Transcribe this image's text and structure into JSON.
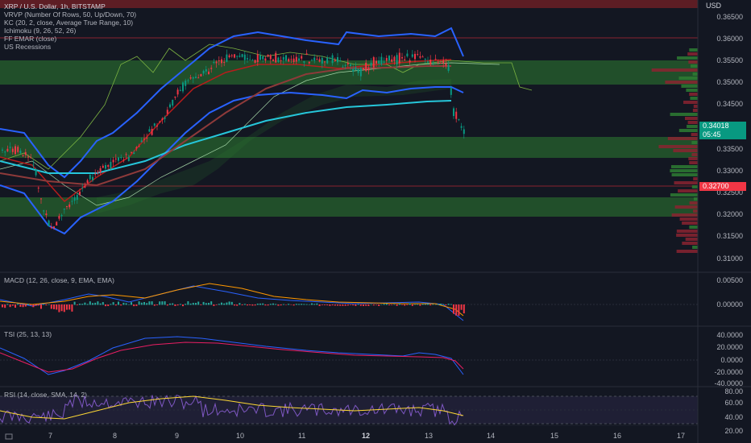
{
  "header": {
    "symbol_line": "XRP / U.S. Dollar, 1h, BITSTAMP",
    "indicators": [
      "VRVP (Number Of Rows, 50, Up/Down, 70)",
      "KC (20, 2, close, Average True Range, 10)",
      "Ichimoku (9, 26, 52, 26)",
      "FF EMAR (close)",
      "US Recessions"
    ]
  },
  "price_axis": {
    "currency": "USD",
    "ticks": [
      "0.36500",
      "0.36000",
      "0.35500",
      "0.35000",
      "0.34500",
      "0.33500",
      "0.33000",
      "0.32500",
      "0.32000",
      "0.31500",
      "0.31000"
    ],
    "current_price": "0.34018",
    "countdown": "05:45",
    "marked_price": "0.32700"
  },
  "panes": {
    "macd": {
      "title": "MACD (12, 26, close, 9, EMA, EMA)",
      "ticks": [
        "0.00500",
        "0.00000"
      ]
    },
    "tsi": {
      "title": "TSI (25, 13, 13)",
      "ticks": [
        "40.0000",
        "20.0000",
        "0.0000",
        "-20.0000",
        "-40.0000"
      ]
    },
    "rsi": {
      "title": "RSI (14, close, SMA, 14, 2)",
      "ticks": [
        "80.00",
        "60.00",
        "40.00",
        "20.00"
      ]
    }
  },
  "time_axis": {
    "labels": [
      "7",
      "8",
      "9",
      "10",
      "11",
      "12",
      "13",
      "14",
      "15",
      "16",
      "17"
    ]
  },
  "colors": {
    "background": "#131722",
    "up": "#089981",
    "down": "#f23645",
    "kc_band": "#2962ff",
    "ema_long": "#26c6da",
    "zone": "#2e7d32"
  },
  "icons": {
    "timeline": "timeline-icon"
  }
}
